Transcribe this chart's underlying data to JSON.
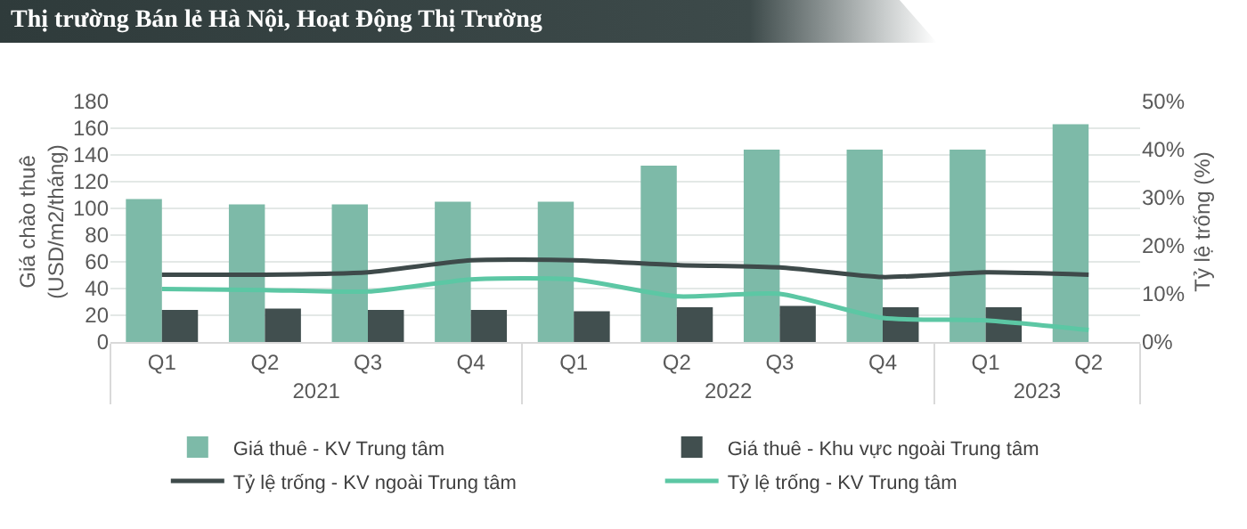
{
  "chart_data": {
    "type": "bar",
    "title": "Thị trường Bán lẻ Hà Nội, Hoạt Động Thị Trường",
    "ylabel": "Giá chào thuê\n(USD/m2/tháng)",
    "y2label": "Tỷ lệ trống (%)",
    "categories": [
      "Q1",
      "Q2",
      "Q3",
      "Q4",
      "Q1",
      "Q2",
      "Q3",
      "Q4",
      "Q1",
      "Q2"
    ],
    "annotations": [
      "2021",
      "2022",
      "2023"
    ],
    "series": [
      {
        "name": "Giá thuê - KV Trung tâm",
        "color": "#7dbaa8",
        "values": [
          107,
          103,
          103,
          105,
          105,
          132,
          144,
          144,
          144,
          163
        ]
      },
      {
        "name": "Giá thuê - Khu vực ngoài Trung tâm",
        "color": "#414f4f",
        "values": [
          24,
          25,
          24,
          24,
          23,
          26,
          27,
          26,
          26,
          null
        ]
      },
      {
        "name": "Tỷ lệ trống - KV ngoài Trung tâm",
        "type": "line",
        "axis": "y2",
        "color": "#3e4a4a",
        "values": [
          14,
          14,
          14.5,
          17,
          17,
          16,
          15.5,
          13.5,
          14.5,
          14
        ]
      },
      {
        "name": "Tỷ lệ trống - KV Trung tâm",
        "type": "line",
        "axis": "y2",
        "color": "#5cc7a4",
        "values": [
          11,
          10.8,
          10.5,
          13,
          13,
          9.5,
          10,
          5,
          4.5,
          2.5
        ]
      }
    ],
    "ylim": [
      0,
      180
    ],
    "yticks": [
      0,
      20,
      40,
      60,
      80,
      100,
      120,
      140,
      160,
      180
    ],
    "y2lim": [
      0,
      50
    ],
    "y2ticks": [
      {
        "value": 0,
        "label": "0%"
      },
      {
        "value": 10,
        "label": "10%"
      },
      {
        "value": 20,
        "label": "20%"
      },
      {
        "value": 30,
        "label": "30%"
      },
      {
        "value": 40,
        "label": "40%"
      },
      {
        "value": 50,
        "label": "50%"
      }
    ],
    "grid": "y",
    "legend": "bottom",
    "marker": "none",
    "line_style": "solid"
  }
}
